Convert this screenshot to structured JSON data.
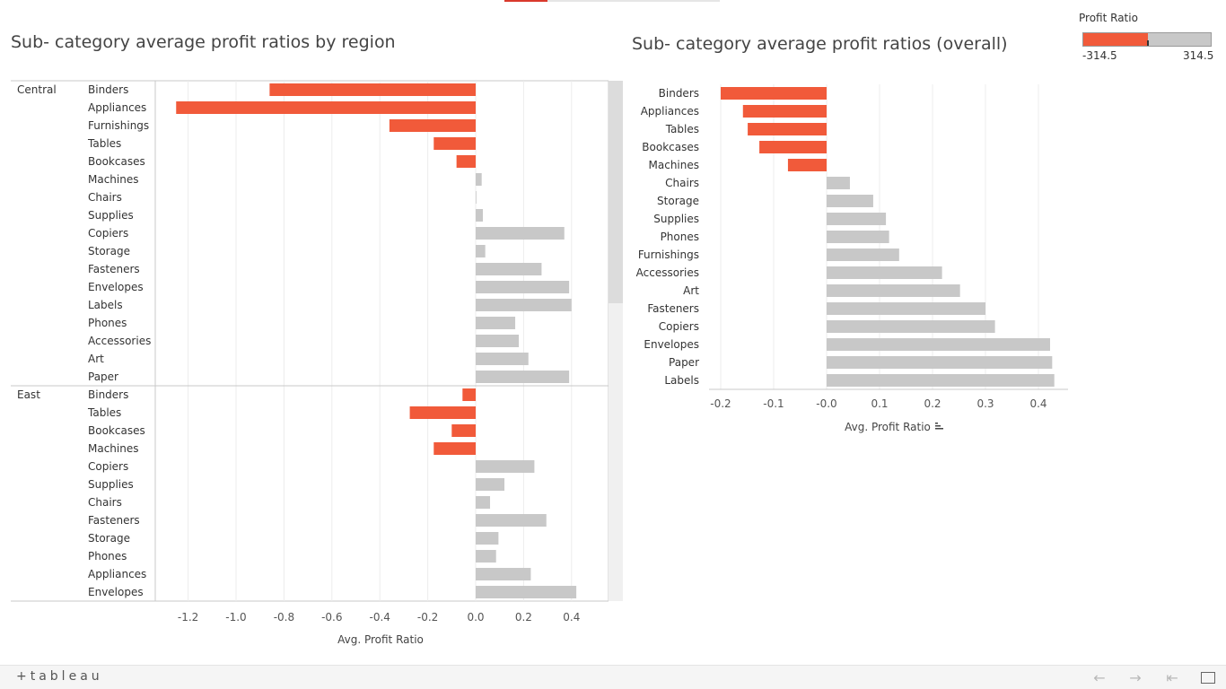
{
  "chart_data": [
    {
      "type": "bar",
      "orientation": "horizontal",
      "title": "Sub- category average profit ratios by region",
      "xlabel": "Avg. Profit Ratio",
      "xlim": [
        -1.35,
        0.55
      ],
      "xticks": [
        "-1.2",
        "-1.0",
        "-0.8",
        "-0.6",
        "-0.4",
        "-0.2",
        "0.0",
        "0.2",
        "0.4"
      ],
      "xtick_values": [
        -1.2,
        -1.0,
        -0.8,
        -0.6,
        -0.4,
        -0.2,
        0.0,
        0.2,
        0.4
      ],
      "grid": true,
      "groups": [
        {
          "name": "Central",
          "categories": [
            "Binders",
            "Appliances",
            "Furnishings",
            "Tables",
            "Bookcases",
            "Machines",
            "Chairs",
            "Supplies",
            "Copiers",
            "Storage",
            "Fasteners",
            "Envelopes",
            "Labels",
            "Phones",
            "Accessories",
            "Art",
            "Paper"
          ],
          "values": [
            -0.86,
            -1.25,
            -0.36,
            -0.175,
            -0.08,
            0.025,
            0.002,
            0.03,
            0.37,
            0.04,
            0.275,
            0.39,
            0.4,
            0.165,
            0.18,
            0.22,
            0.39
          ]
        },
        {
          "name": "East",
          "categories": [
            "Binders",
            "Tables",
            "Bookcases",
            "Machines",
            "Copiers",
            "Supplies",
            "Chairs",
            "Fasteners",
            "Storage",
            "Phones",
            "Appliances",
            "Envelopes"
          ],
          "values": [
            -0.055,
            -0.275,
            -0.1,
            -0.175,
            0.245,
            0.12,
            0.06,
            0.295,
            0.095,
            0.085,
            0.23,
            0.42
          ]
        }
      ]
    },
    {
      "type": "bar",
      "orientation": "horizontal",
      "title": "Sub- category average profit ratios (overall)",
      "xlabel": "Avg. Profit Ratio",
      "xlim": [
        -0.22,
        0.46
      ],
      "xticks": [
        "-0.2",
        "-0.1",
        "-0.0",
        "0.1",
        "0.2",
        "0.3",
        "0.4"
      ],
      "xtick_values": [
        -0.2,
        -0.1,
        0.0,
        0.1,
        0.2,
        0.3,
        0.4
      ],
      "grid": true,
      "categories": [
        "Binders",
        "Appliances",
        "Tables",
        "Bookcases",
        "Machines",
        "Chairs",
        "Storage",
        "Supplies",
        "Phones",
        "Furnishings",
        "Accessories",
        "Art",
        "Fasteners",
        "Copiers",
        "Envelopes",
        "Paper",
        "Labels"
      ],
      "values": [
        -0.2,
        -0.158,
        -0.149,
        -0.127,
        -0.073,
        0.044,
        0.088,
        0.112,
        0.118,
        0.137,
        0.218,
        0.252,
        0.3,
        0.318,
        0.422,
        0.426,
        0.43
      ]
    }
  ],
  "legend": {
    "title": "Profit Ratio",
    "min": "-314.5",
    "max": "314.5"
  },
  "colors": {
    "negative": "#f15a3a",
    "positive": "#c8c8c8",
    "grid": "#ececec"
  },
  "footer": {
    "logo": "+tableau"
  }
}
